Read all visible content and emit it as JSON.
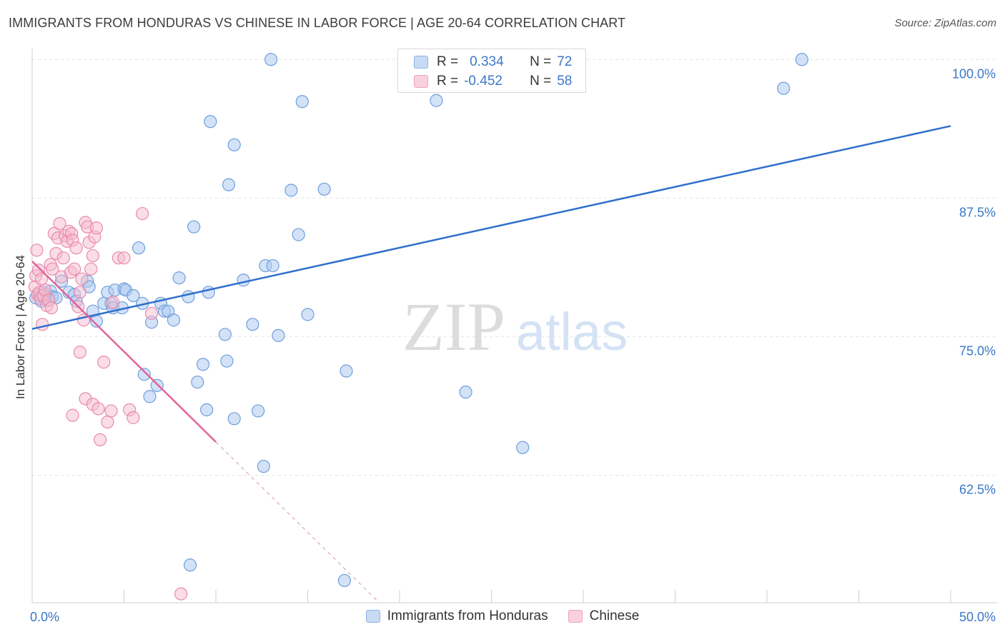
{
  "header": {
    "title": "IMMIGRANTS FROM HONDURAS VS CHINESE IN LABOR FORCE | AGE 20-64 CORRELATION CHART",
    "source": "Source: ZipAtlas.com"
  },
  "watermark": {
    "zip": "ZIP",
    "atlas": "atlas"
  },
  "legend": {
    "rows": [
      {
        "r_label": "R =",
        "r_value": "0.334",
        "n_label": "N =",
        "n_value": "72"
      },
      {
        "r_label": "R =",
        "r_value": "-0.452",
        "n_label": "N =",
        "n_value": "58"
      }
    ]
  },
  "colors": {
    "honduras_fill": "#aecbf0",
    "honduras_stroke": "#6f9fdc",
    "honduras_line": "#2f6fcc",
    "chinese_fill": "#f6bcd0",
    "chinese_stroke": "#e98aab",
    "chinese_line": "#e0659a",
    "tick_label": "#3a78c8",
    "grid": "#e4e4e4"
  },
  "chart_data": {
    "type": "scatter",
    "title": "IMMIGRANTS FROM HONDURAS VS CHINESE IN LABOR FORCE | AGE 20-64 CORRELATION CHART",
    "xlabel": "",
    "ylabel": "In Labor Force | Age 20-64",
    "xlim": [
      0,
      50
    ],
    "ylim": [
      51,
      101.5
    ],
    "x_tick_labels": [
      {
        "value": 0,
        "label": "0.0%"
      },
      {
        "value": 50,
        "label": "50.0%"
      }
    ],
    "x_minor_ticks": [
      0,
      5,
      10,
      15,
      20,
      25,
      30,
      35,
      40,
      45,
      50
    ],
    "y_ticks": [
      {
        "value": 100,
        "label": "100.0%"
      },
      {
        "value": 87.5,
        "label": "87.5%"
      },
      {
        "value": 75,
        "label": "75.0%"
      },
      {
        "value": 62.5,
        "label": "62.5%"
      }
    ],
    "legend_position": "top-center",
    "series": [
      {
        "name": "Immigrants from Honduras",
        "R": 0.334,
        "N": 72,
        "trend": {
          "x": [
            0,
            50
          ],
          "y": [
            75.7,
            94.0
          ],
          "dashed_extension": false
        },
        "points": [
          [
            0.2,
            78.5
          ],
          [
            0.4,
            78.7
          ],
          [
            0.5,
            78.2
          ],
          [
            0.6,
            79.0
          ],
          [
            0.7,
            78.4
          ],
          [
            0.8,
            78.8
          ],
          [
            0.9,
            78.3
          ],
          [
            1.0,
            79.1
          ],
          [
            1.1,
            78.6
          ],
          [
            1.3,
            78.5
          ],
          [
            1.6,
            80.0
          ],
          [
            2.0,
            79.0
          ],
          [
            2.3,
            78.8
          ],
          [
            2.4,
            78.2
          ],
          [
            3.0,
            80.0
          ],
          [
            3.1,
            79.5
          ],
          [
            3.3,
            77.3
          ],
          [
            3.5,
            76.4
          ],
          [
            3.9,
            78.0
          ],
          [
            4.1,
            79.0
          ],
          [
            4.3,
            78.0
          ],
          [
            4.4,
            77.6
          ],
          [
            4.5,
            79.2
          ],
          [
            4.9,
            77.6
          ],
          [
            5.0,
            79.3
          ],
          [
            5.1,
            79.2
          ],
          [
            5.5,
            78.7
          ],
          [
            5.8,
            83.0
          ],
          [
            6.0,
            78.0
          ],
          [
            6.1,
            71.6
          ],
          [
            6.4,
            69.6
          ],
          [
            6.5,
            76.3
          ],
          [
            6.8,
            70.6
          ],
          [
            7.0,
            78.0
          ],
          [
            7.2,
            77.3
          ],
          [
            7.4,
            77.3
          ],
          [
            7.7,
            76.5
          ],
          [
            8.0,
            80.3
          ],
          [
            8.5,
            78.6
          ],
          [
            8.8,
            84.9
          ],
          [
            9.0,
            70.9
          ],
          [
            9.3,
            72.5
          ],
          [
            9.5,
            68.4
          ],
          [
            9.6,
            79.0
          ],
          [
            9.7,
            94.4
          ],
          [
            10.5,
            75.2
          ],
          [
            10.6,
            72.8
          ],
          [
            10.7,
            88.7
          ],
          [
            11.0,
            92.3
          ],
          [
            11.0,
            67.6
          ],
          [
            11.5,
            80.1
          ],
          [
            12.0,
            76.1
          ],
          [
            12.3,
            68.3
          ],
          [
            12.6,
            63.3
          ],
          [
            12.7,
            81.4
          ],
          [
            13.0,
            100.0
          ],
          [
            13.1,
            81.4
          ],
          [
            13.4,
            75.1
          ],
          [
            14.1,
            88.2
          ],
          [
            14.5,
            84.2
          ],
          [
            14.7,
            96.2
          ],
          [
            15.0,
            77.0
          ],
          [
            15.9,
            88.3
          ],
          [
            17.1,
            71.9
          ],
          [
            8.6,
            54.4
          ],
          [
            17.0,
            53.0
          ],
          [
            22.0,
            96.3
          ],
          [
            22.8,
            100.0
          ],
          [
            23.6,
            70.0
          ],
          [
            26.7,
            65.0
          ],
          [
            40.9,
            97.4
          ],
          [
            41.9,
            100.0
          ]
        ]
      },
      {
        "name": "Chinese",
        "R": -0.452,
        "N": 58,
        "trend": {
          "x": [
            0,
            10
          ],
          "y": [
            81.8,
            65.5
          ],
          "dashed_extension": {
            "x": [
              10,
              20
            ],
            "y": [
              65.5,
              49.2
            ]
          }
        },
        "points": [
          [
            0.15,
            79.5
          ],
          [
            0.2,
            80.5
          ],
          [
            0.25,
            82.8
          ],
          [
            0.3,
            78.8
          ],
          [
            0.35,
            81.0
          ],
          [
            0.4,
            79.0
          ],
          [
            0.45,
            78.4
          ],
          [
            0.5,
            80.2
          ],
          [
            0.55,
            76.1
          ],
          [
            0.6,
            78.7
          ],
          [
            0.7,
            79.2
          ],
          [
            0.8,
            77.8
          ],
          [
            0.9,
            78.3
          ],
          [
            1.0,
            81.5
          ],
          [
            1.05,
            77.6
          ],
          [
            1.1,
            81.1
          ],
          [
            1.2,
            84.3
          ],
          [
            1.3,
            82.5
          ],
          [
            1.4,
            83.9
          ],
          [
            1.5,
            85.2
          ],
          [
            1.6,
            80.4
          ],
          [
            1.7,
            82.1
          ],
          [
            1.8,
            84.1
          ],
          [
            1.9,
            83.6
          ],
          [
            2.0,
            84.5
          ],
          [
            2.1,
            80.8
          ],
          [
            2.15,
            84.3
          ],
          [
            2.2,
            83.7
          ],
          [
            2.3,
            81.1
          ],
          [
            2.4,
            83.0
          ],
          [
            2.5,
            77.7
          ],
          [
            2.6,
            79.0
          ],
          [
            2.7,
            80.2
          ],
          [
            2.8,
            76.5
          ],
          [
            2.9,
            85.3
          ],
          [
            3.0,
            84.9
          ],
          [
            3.1,
            83.5
          ],
          [
            3.2,
            81.1
          ],
          [
            3.3,
            82.3
          ],
          [
            3.4,
            84.0
          ],
          [
            3.5,
            84.8
          ],
          [
            2.6,
            73.6
          ],
          [
            2.2,
            67.9
          ],
          [
            2.9,
            69.4
          ],
          [
            3.3,
            68.9
          ],
          [
            3.6,
            68.5
          ],
          [
            3.7,
            65.7
          ],
          [
            3.9,
            72.7
          ],
          [
            4.1,
            67.3
          ],
          [
            4.3,
            68.3
          ],
          [
            4.4,
            78.1
          ],
          [
            4.7,
            82.1
          ],
          [
            5.0,
            82.1
          ],
          [
            5.3,
            68.4
          ],
          [
            5.5,
            67.7
          ],
          [
            6.0,
            86.1
          ],
          [
            6.5,
            77.1
          ],
          [
            8.1,
            51.8
          ]
        ]
      }
    ]
  }
}
